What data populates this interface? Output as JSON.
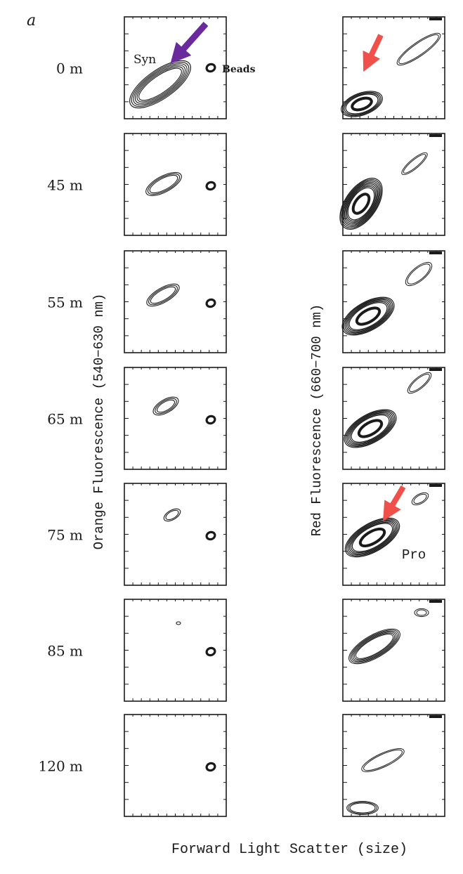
{
  "chart_data": {
    "type": "contour",
    "panel_letter": "a",
    "xlabel": "Forward Light Scatter (size)",
    "ylabel_left": "Orange Fluorescence (540−630 nm)",
    "ylabel_right": "Red Fluorescence (660−700 nm)",
    "depths": [
      "0 m",
      "45 m",
      "55 m",
      "65 m",
      "75 m",
      "85 m",
      "120 m"
    ],
    "annotations": {
      "syn": "Syn",
      "beads": "Beads",
      "pro": "Pro"
    },
    "arrow_colors": {
      "syn_arrow": "#6a2a9e",
      "pro_arrow": "#f0504a"
    },
    "line_color": "#1a1a1a",
    "axis_ranges": {
      "x": [
        0,
        1
      ],
      "y": [
        0,
        1
      ]
    },
    "grid": false
  }
}
